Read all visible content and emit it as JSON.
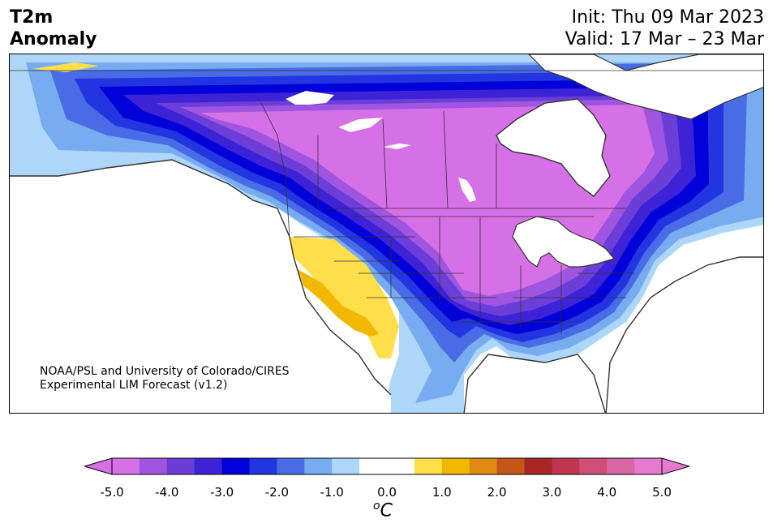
{
  "title": {
    "variable": "T2m",
    "metric": "Anomaly"
  },
  "dates": {
    "init": "Init: Thu 09 Mar 2023",
    "valid": "Valid: 17 Mar – 23 Mar"
  },
  "credit": {
    "line1": "NOAA/PSL and University of Colorado/CIRES",
    "line2": "Experimental LIM Forecast (v1.2)"
  },
  "colorbar": {
    "unit": "oC",
    "ticks": [
      "-5.0",
      "-4.0",
      "-3.0",
      "-2.0",
      "-1.0",
      "0.0",
      "1.0",
      "2.0",
      "3.0",
      "4.0",
      "5.0"
    ],
    "colors": [
      "#d670e6",
      "#9f55e0",
      "#6b3ed8",
      "#3d22d6",
      "#0000d8",
      "#2235e0",
      "#4a6be6",
      "#78acf0",
      "#aed6f8",
      "#ffffff",
      "#ffffff",
      "#ffde4c",
      "#f2b800",
      "#e08a12",
      "#c4561a",
      "#a82626",
      "#c03650",
      "#ce5078",
      "#d966a4",
      "#e67ad0"
    ],
    "under_color": "#d670e6",
    "over_color": "#e67ad0"
  },
  "map_colors": {
    "land_border": "#333333",
    "ocean": "#ffffff",
    "lake": "#ffffff"
  }
}
